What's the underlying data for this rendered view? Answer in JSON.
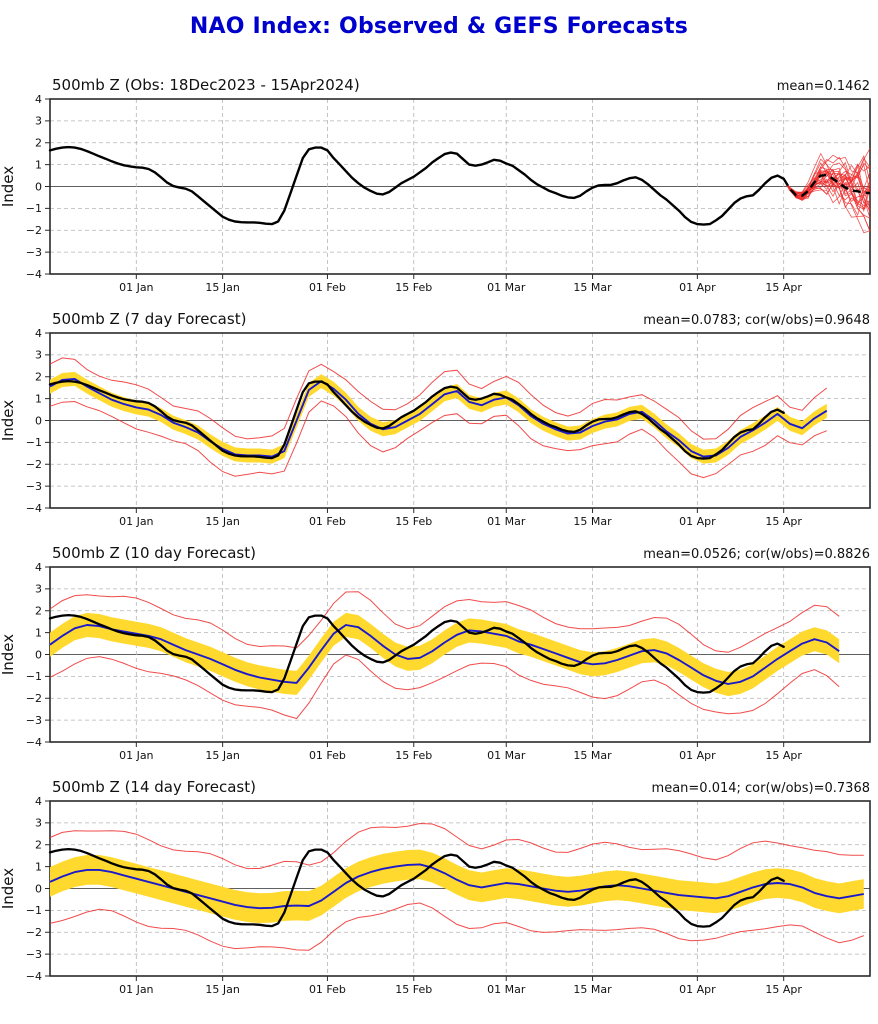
{
  "page_title": "NAO Index: Observed & GEFS Forecasts",
  "colors": {
    "title": "#0000cc",
    "observed_line": "#000000",
    "forecast_line": "#1a1acc",
    "spread_band": "#ffd92e",
    "envelope_line": "#ee2b2b",
    "ensemble_line": "#ee2b2b",
    "grid": "#b5b5b5",
    "zero_line": "#606060",
    "frame": "#2a2a2a"
  },
  "axis": {
    "ylabel": "Index",
    "ymin": -4,
    "ymax": 4,
    "ytick_labels": [
      "4",
      "3",
      "2",
      "1",
      "0",
      "−1",
      "−2",
      "−3",
      "−4"
    ],
    "ytick_values": [
      4,
      3,
      2,
      1,
      0,
      -1,
      -2,
      -3,
      -4
    ],
    "day_min": 0,
    "day_max": 133,
    "xticks": [
      {
        "day": 14,
        "label": "01 Jan"
      },
      {
        "day": 28,
        "label": "15 Jan"
      },
      {
        "day": 45,
        "label": "01 Feb"
      },
      {
        "day": 59,
        "label": "15 Feb"
      },
      {
        "day": 74,
        "label": "01 Mar"
      },
      {
        "day": 88,
        "label": "15 Mar"
      },
      {
        "day": 105,
        "label": "01 Apr"
      },
      {
        "day": 119,
        "label": "15 Apr"
      }
    ]
  },
  "chart_data": [
    {
      "type": "line",
      "panel": "observed",
      "title": "500mb Z (Obs: 18Dec2023 - 15Apr2024)",
      "stats": "mean=0.1462",
      "ylabel": "Index",
      "ylim": [
        -4,
        4
      ],
      "obs": {
        "start_day": 0,
        "step": 1,
        "values": [
          1.65,
          1.73,
          1.78,
          1.8,
          1.78,
          1.72,
          1.62,
          1.5,
          1.38,
          1.27,
          1.15,
          1.05,
          0.97,
          0.92,
          0.88,
          0.86,
          0.8,
          0.65,
          0.42,
          0.18,
          0.02,
          -0.05,
          -0.1,
          -0.22,
          -0.45,
          -0.68,
          -0.92,
          -1.15,
          -1.38,
          -1.52,
          -1.6,
          -1.63,
          -1.64,
          -1.64,
          -1.66,
          -1.7,
          -1.72,
          -1.6,
          -1.1,
          -0.3,
          0.5,
          1.3,
          1.7,
          1.78,
          1.78,
          1.65,
          1.3,
          1.0,
          0.7,
          0.4,
          0.15,
          -0.05,
          -0.2,
          -0.33,
          -0.36,
          -0.25,
          -0.05,
          0.15,
          0.3,
          0.45,
          0.65,
          0.85,
          1.1,
          1.3,
          1.48,
          1.55,
          1.5,
          1.25,
          1.0,
          0.95,
          1.0,
          1.1,
          1.22,
          1.18,
          1.05,
          0.95,
          0.75,
          0.55,
          0.3,
          0.1,
          -0.05,
          -0.2,
          -0.3,
          -0.42,
          -0.5,
          -0.52,
          -0.42,
          -0.22,
          -0.05,
          0.05,
          0.07,
          0.08,
          0.15,
          0.28,
          0.38,
          0.42,
          0.3,
          0.1,
          -0.15,
          -0.4,
          -0.6,
          -0.85,
          -1.1,
          -1.4,
          -1.62,
          -1.72,
          -1.74,
          -1.72,
          -1.55,
          -1.35,
          -1.05,
          -0.75,
          -0.55,
          -0.45,
          -0.4,
          -0.15,
          0.15,
          0.4,
          0.5,
          0.35
        ]
      },
      "ensemble": {
        "start_day": 119,
        "step": 1,
        "members": 26,
        "mean": [
          0.35,
          -0.1,
          -0.4,
          -0.42,
          -0.2,
          0.2,
          0.5,
          0.52,
          0.35,
          0.15,
          -0.05,
          -0.18,
          -0.22,
          -0.28,
          -0.3
        ],
        "spread": [
          0.06,
          0.12,
          0.2,
          0.32,
          0.5,
          0.7,
          0.9,
          1.05,
          1.2,
          1.35,
          1.5,
          1.65,
          1.8,
          1.95,
          2.05
        ]
      }
    },
    {
      "type": "line",
      "panel": "forecast-7day",
      "title": "500mb Z (7 day Forecast)",
      "stats": "mean=0.0783; cor(w/obs)=0.9648",
      "ylabel": "Index",
      "ylim": [
        -4,
        4
      ],
      "band_halfwidth": 0.32,
      "envelope_halfwidth": 0.9,
      "mean": {
        "start_day": 0,
        "step": 2,
        "values": [
          1.55,
          1.85,
          1.9,
          1.55,
          1.25,
          0.95,
          0.75,
          0.6,
          0.5,
          0.25,
          -0.1,
          -0.3,
          -0.55,
          -0.95,
          -1.3,
          -1.55,
          -1.6,
          -1.6,
          -1.65,
          -1.4,
          0.0,
          1.4,
          1.8,
          1.45,
          0.95,
          0.3,
          -0.15,
          -0.4,
          -0.3,
          0.0,
          0.3,
          0.75,
          1.2,
          1.35,
          0.85,
          0.7,
          0.95,
          1.05,
          0.7,
          0.2,
          -0.15,
          -0.4,
          -0.6,
          -0.55,
          -0.25,
          -0.05,
          0.05,
          0.3,
          0.4,
          0.0,
          -0.5,
          -0.9,
          -1.4,
          -1.65,
          -1.6,
          -1.25,
          -0.75,
          -0.45,
          -0.1,
          0.3,
          -0.15,
          -0.35,
          0.1,
          0.45
        ]
      }
    },
    {
      "type": "line",
      "panel": "forecast-10day",
      "title": "500mb Z (10 day Forecast)",
      "stats": "mean=0.0526; cor(w/obs)=0.8826",
      "ylabel": "Index",
      "ylim": [
        -4,
        4
      ],
      "band_halfwidth": 0.55,
      "envelope_halfwidth": 1.5,
      "mean": {
        "start_day": 0,
        "step": 2,
        "values": [
          0.45,
          0.85,
          1.2,
          1.35,
          1.3,
          1.15,
          1.05,
          0.95,
          0.85,
          0.7,
          0.45,
          0.2,
          0.0,
          -0.2,
          -0.45,
          -0.7,
          -0.9,
          -1.05,
          -1.15,
          -1.25,
          -1.3,
          -0.6,
          0.2,
          0.95,
          1.35,
          1.25,
          0.85,
          0.4,
          0.0,
          -0.2,
          -0.15,
          0.15,
          0.55,
          0.9,
          1.1,
          1.05,
          0.95,
          0.85,
          0.6,
          0.45,
          0.25,
          0.05,
          -0.15,
          -0.35,
          -0.45,
          -0.4,
          -0.25,
          -0.05,
          0.15,
          0.2,
          0.05,
          -0.25,
          -0.6,
          -0.95,
          -1.2,
          -1.35,
          -1.25,
          -1.0,
          -0.6,
          -0.2,
          0.15,
          0.5,
          0.7,
          0.55,
          0.15
        ]
      }
    },
    {
      "type": "line",
      "panel": "forecast-14day",
      "title": "500mb Z (14 day Forecast)",
      "stats": "mean=0.014; cor(w/obs)=0.7368",
      "ylabel": "Index",
      "ylim": [
        -4,
        4
      ],
      "band_halfwidth": 0.68,
      "envelope_halfwidth": 1.9,
      "mean": {
        "start_day": 0,
        "step": 2,
        "values": [
          0.3,
          0.55,
          0.75,
          0.85,
          0.85,
          0.75,
          0.6,
          0.45,
          0.3,
          0.15,
          0.0,
          -0.15,
          -0.3,
          -0.45,
          -0.6,
          -0.75,
          -0.85,
          -0.9,
          -0.88,
          -0.8,
          -0.78,
          -0.8,
          -0.55,
          -0.15,
          0.25,
          0.55,
          0.75,
          0.9,
          1.0,
          1.08,
          1.1,
          0.95,
          0.7,
          0.4,
          0.15,
          0.05,
          0.15,
          0.25,
          0.2,
          0.1,
          0.0,
          -0.1,
          -0.15,
          -0.1,
          0.0,
          0.1,
          0.15,
          0.1,
          0.0,
          -0.1,
          -0.2,
          -0.3,
          -0.35,
          -0.4,
          -0.45,
          -0.35,
          -0.15,
          0.05,
          0.2,
          0.25,
          0.2,
          0.05,
          -0.2,
          -0.35,
          -0.45,
          -0.35,
          -0.25
        ]
      }
    }
  ]
}
